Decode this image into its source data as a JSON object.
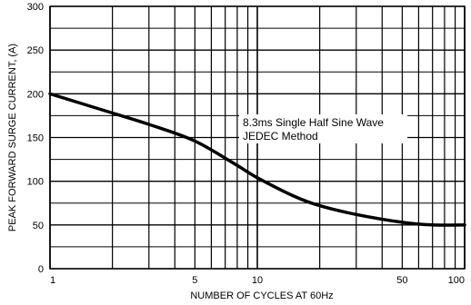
{
  "chart_data": {
    "type": "line",
    "title": "",
    "xlabel": "NUMBER OF CYCLES AT 60Hz",
    "ylabel": "PEAK FORWARD SURGE CURRENT, (A)",
    "x_scale": "log",
    "xlim": [
      1,
      100
    ],
    "ylim": [
      0,
      300
    ],
    "x_ticks": [
      1,
      5,
      10,
      50,
      100
    ],
    "x_tick_labels": [
      "1",
      "5",
      "10",
      "50",
      "100"
    ],
    "y_ticks": [
      0,
      50,
      100,
      150,
      200,
      250,
      300
    ],
    "y_tick_labels": [
      "0",
      "50",
      "100",
      "150",
      "200",
      "250",
      "300"
    ],
    "grid": true,
    "series": [
      {
        "x": [
          1,
          2,
          3,
          5,
          8,
          10,
          15,
          20,
          30,
          50,
          70,
          100
        ],
        "y": [
          200,
          178,
          165,
          146,
          118,
          104,
          83,
          72,
          62,
          53,
          50,
          50
        ],
        "color": "#000000"
      }
    ],
    "annotation": [
      "8.3ms Single Half Sine Wave",
      "JEDEC Method"
    ]
  }
}
